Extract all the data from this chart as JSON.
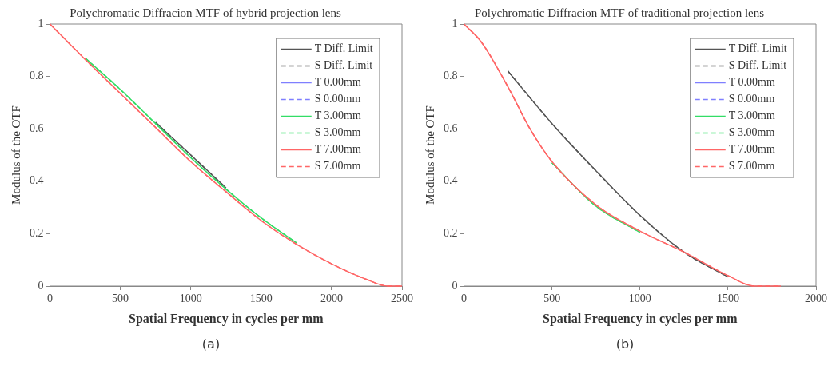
{
  "chart_data": [
    {
      "type": "line",
      "title": "Polychromatic Diffracion MTF of hybrid projection lens",
      "xlabel": "Spatial Frequency in cycles per mm",
      "ylabel": "Modulus of the OTF",
      "annotations": [
        "(a)"
      ],
      "x": [
        0,
        250,
        500,
        750,
        1000,
        1250,
        1500,
        1750,
        2000,
        2250,
        2400,
        2500
      ],
      "xlim": [
        0,
        2500
      ],
      "xticks": [
        0,
        500,
        1000,
        1500,
        2000,
        2500
      ],
      "ylim": [
        0,
        1
      ],
      "yticks": [
        0,
        0.2,
        0.4,
        0.6,
        0.8,
        1
      ],
      "grid": false,
      "legend": "top right",
      "marker": "none",
      "series": [
        {
          "name": "T Diff. Limit",
          "color": "#555555",
          "line_style": "solid",
          "values": [
            null,
            null,
            null,
            0.625,
            0.5,
            0.375,
            null,
            null,
            null,
            null,
            null,
            null
          ]
        },
        {
          "name": "S Diff. Limit",
          "color": "#555555",
          "line_style": "dashed",
          "values": [
            null,
            null,
            null,
            0.625,
            0.5,
            0.375,
            null,
            null,
            null,
            null,
            null,
            null
          ]
        },
        {
          "name": "T 0.00mm",
          "color": "#7f7fff",
          "line_style": "solid",
          "values": [
            null,
            null,
            null,
            null,
            null,
            null,
            null,
            null,
            null,
            null,
            null,
            null
          ]
        },
        {
          "name": "S 0.00mm",
          "color": "#7f7fff",
          "line_style": "dashed",
          "values": [
            null,
            null,
            null,
            null,
            null,
            null,
            null,
            null,
            null,
            null,
            null,
            null
          ]
        },
        {
          "name": "T 3.00mm",
          "color": "#33dd66",
          "line_style": "solid",
          "values": [
            null,
            0.87,
            0.75,
            0.62,
            0.49,
            0.37,
            0.26,
            0.165,
            null,
            null,
            null,
            null
          ]
        },
        {
          "name": "S 3.00mm",
          "color": "#33dd66",
          "line_style": "dashed",
          "values": [
            null,
            0.87,
            0.75,
            0.62,
            0.49,
            0.37,
            0.26,
            0.165,
            null,
            null,
            null,
            null
          ]
        },
        {
          "name": "T 7.00mm",
          "color": "#ff6666",
          "line_style": "solid",
          "values": [
            1,
            0.865,
            0.735,
            0.605,
            0.475,
            0.36,
            0.25,
            0.16,
            0.085,
            0.025,
            0,
            0
          ]
        },
        {
          "name": "S 7.00mm",
          "color": "#ff6666",
          "line_style": "dashed",
          "values": [
            1,
            0.865,
            0.735,
            0.605,
            0.475,
            0.36,
            0.25,
            0.16,
            0.085,
            0.025,
            0,
            0
          ]
        }
      ]
    },
    {
      "type": "line",
      "title": "Polychromatic Diffracion MTF of traditional projection lens",
      "xlabel": "Spatial Frequency in cycles per mm",
      "ylabel": "Modulus of the OTF",
      "annotations": [
        "(b)"
      ],
      "x": [
        0,
        100,
        250,
        375,
        500,
        750,
        1000,
        1250,
        1500,
        1650,
        1800
      ],
      "xlim": [
        0,
        2000
      ],
      "xticks": [
        0,
        500,
        1000,
        1500,
        2000
      ],
      "ylim": [
        0,
        1
      ],
      "yticks": [
        0,
        0.2,
        0.4,
        0.6,
        0.8,
        1
      ],
      "grid": false,
      "legend": "top right",
      "marker": "none",
      "series": [
        {
          "name": "T Diff. Limit",
          "color": "#555555",
          "line_style": "solid",
          "x": [
            250,
            500,
            750,
            1000,
            1250,
            1500
          ],
          "values": [
            0.82,
            0.62,
            0.44,
            0.27,
            0.13,
            0.035
          ]
        },
        {
          "name": "S Diff. Limit",
          "color": "#555555",
          "line_style": "dashed",
          "x": [
            250,
            500,
            750,
            1000,
            1250,
            1500
          ],
          "values": [
            0.82,
            0.62,
            0.44,
            0.27,
            0.13,
            0.035
          ]
        },
        {
          "name": "T 0.00mm",
          "color": "#7f7fff",
          "line_style": "solid",
          "values": [
            null,
            null,
            null,
            null,
            null,
            null,
            null,
            null,
            null,
            null,
            null
          ]
        },
        {
          "name": "S 0.00mm",
          "color": "#7f7fff",
          "line_style": "dashed",
          "values": [
            null,
            null,
            null,
            null,
            null,
            null,
            null,
            null,
            null,
            null,
            null
          ]
        },
        {
          "name": "T 3.00mm",
          "color": "#33dd66",
          "line_style": "solid",
          "values": [
            null,
            null,
            null,
            null,
            0.47,
            0.305,
            0.205,
            null,
            null,
            null,
            null
          ]
        },
        {
          "name": "S 3.00mm",
          "color": "#33dd66",
          "line_style": "dashed",
          "values": [
            null,
            null,
            null,
            null,
            0.47,
            0.305,
            0.205,
            null,
            null,
            null,
            null
          ]
        },
        {
          "name": "T 7.00mm",
          "color": "#ff6666",
          "line_style": "solid",
          "values": [
            1,
            0.93,
            0.76,
            0.6,
            0.475,
            0.31,
            0.21,
            0.13,
            0.04,
            0,
            0
          ]
        },
        {
          "name": "S 7.00mm",
          "color": "#ff6666",
          "line_style": "dashed",
          "values": [
            1,
            0.93,
            0.76,
            0.6,
            0.475,
            0.31,
            0.21,
            0.13,
            0.04,
            0,
            0
          ]
        }
      ]
    }
  ]
}
